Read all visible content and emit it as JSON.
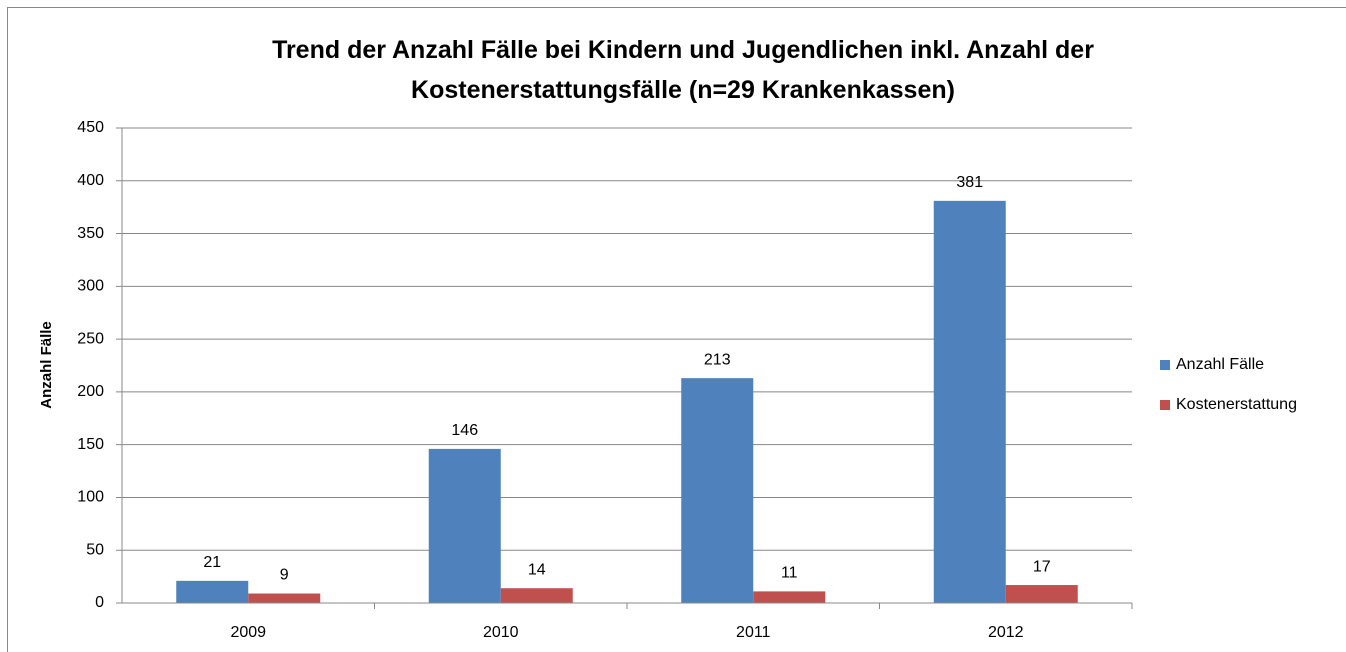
{
  "chart_data": {
    "type": "bar",
    "title": "Trend der Anzahl Fälle bei Kindern und Jugendlichen inkl. Anzahl der Kostenerstattungsfälle (n=29 Krankenkassen)",
    "y_label": "Anzahl Fälle",
    "categories": [
      "2009",
      "2010",
      "2011",
      "2012"
    ],
    "series": [
      {
        "name": "Anzahl Fälle",
        "color": "#4f81bd",
        "values": [
          21,
          146,
          213,
          381
        ]
      },
      {
        "name": "Kostenerstattung",
        "color": "#c0504d",
        "values": [
          9,
          14,
          11,
          17
        ]
      }
    ],
    "ylim": [
      0,
      450
    ],
    "yticks": [
      0,
      50,
      100,
      150,
      200,
      250,
      300,
      350,
      400,
      450
    ],
    "grid": true,
    "legend": "right"
  }
}
